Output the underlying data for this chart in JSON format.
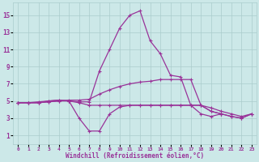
{
  "background_color": "#cce8e8",
  "grid_color": "#aacccc",
  "line_color": "#993399",
  "x_ticks": [
    0,
    1,
    2,
    3,
    4,
    5,
    6,
    7,
    8,
    9,
    10,
    11,
    12,
    13,
    14,
    15,
    16,
    17,
    18,
    19,
    20,
    21,
    22,
    23
  ],
  "y_ticks": [
    1,
    3,
    5,
    7,
    9,
    11,
    13,
    15
  ],
  "xlabel": "Windchill (Refroidissement éolien,°C)",
  "ylim": [
    0.0,
    16.5
  ],
  "xlim": [
    -0.5,
    23.5
  ],
  "series": [
    [
      4.8,
      4.8,
      4.8,
      4.9,
      5.0,
      5.0,
      4.9,
      4.9,
      8.5,
      11.0,
      13.5,
      15.0,
      15.5,
      12.0,
      10.5,
      8.0,
      7.8,
      4.5,
      3.5,
      3.2,
      3.5,
      null,
      null,
      null
    ],
    [
      4.8,
      4.8,
      4.8,
      4.9,
      5.0,
      5.1,
      5.1,
      5.2,
      5.8,
      6.3,
      6.7,
      7.0,
      7.2,
      7.3,
      7.5,
      7.5,
      7.5,
      7.5,
      4.5,
      3.8,
      3.5,
      3.2,
      3.0,
      3.5
    ],
    [
      4.8,
      4.8,
      4.8,
      5.0,
      5.1,
      5.0,
      4.8,
      4.5,
      4.5,
      4.5,
      4.5,
      4.5,
      4.5,
      4.5,
      4.5,
      4.5,
      4.5,
      4.5,
      4.5,
      4.2,
      3.8,
      3.5,
      3.2,
      3.5
    ],
    [
      4.8,
      4.8,
      4.9,
      5.0,
      5.1,
      5.0,
      3.0,
      1.5,
      1.5,
      3.5,
      4.3,
      4.5,
      4.5,
      4.5,
      4.5,
      4.5,
      4.5,
      4.5,
      4.5,
      3.8,
      3.5,
      3.2,
      3.0,
      3.5
    ]
  ]
}
